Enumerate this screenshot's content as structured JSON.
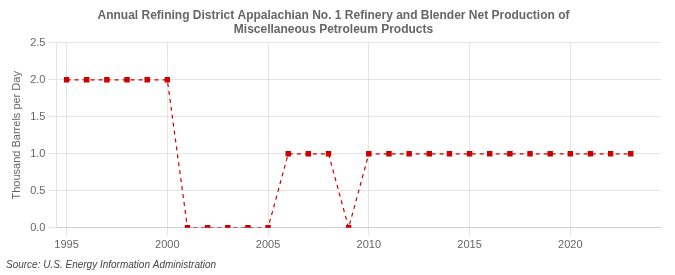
{
  "chart_data": {
    "type": "line",
    "title": [
      "Annual Refining District Appalachian No. 1 Refinery and Blender Net Production of",
      "Miscellaneous Petroleum Products"
    ],
    "ylabel": "Thousand Barrels per Day",
    "annotations": [
      "Source: U.S. Energy Information Administration"
    ],
    "x": [
      1995,
      1996,
      1997,
      1998,
      1999,
      2000,
      2001,
      2002,
      2003,
      2004,
      2005,
      2006,
      2007,
      2008,
      2009,
      2010,
      2011,
      2012,
      2013,
      2014,
      2015,
      2016,
      2017,
      2018,
      2019,
      2020,
      2021,
      2022,
      2023
    ],
    "values": [
      2.0,
      2.0,
      2.0,
      2.0,
      2.0,
      2.0,
      0.0,
      0.0,
      0.0,
      0.0,
      0.0,
      1.0,
      1.0,
      1.0,
      0.0,
      1.0,
      1.0,
      1.0,
      1.0,
      1.0,
      1.0,
      1.0,
      1.0,
      1.0,
      1.0,
      1.0,
      1.0,
      1.0,
      1.0
    ],
    "color": "#cc0000",
    "marker": "square",
    "line_style": "dashed",
    "xlim": [
      1994.5,
      2024.5
    ],
    "xticks": [
      1995,
      2000,
      2005,
      2010,
      2015,
      2020
    ],
    "ylim": [
      0.0,
      2.5
    ],
    "yticks": [
      {
        "value": 0,
        "label": "0.0"
      },
      0.5,
      {
        "value": 1,
        "label": "1.0"
      },
      1.5,
      {
        "value": 2,
        "label": "2.0"
      },
      2.5
    ],
    "grid": true
  }
}
